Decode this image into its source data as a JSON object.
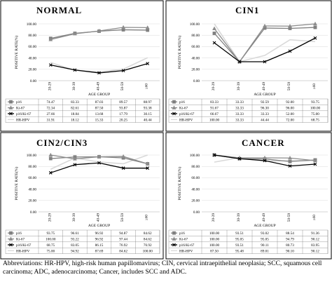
{
  "caption": {
    "line1": "Abbreviations: HR-HPV, high-risk human papillomavirus; CIN, cervical intraepithelial neoplasia; SCC, squamous cell",
    "line2": "carcinoma; ADC, adenocarcinoma; Cancer, includes SCC and ADC."
  },
  "chart_data": [
    {
      "type": "line",
      "title": "NORMAL",
      "xlabel": "AGE GROUP",
      "ylabel": "POSITIVE RATE(%)",
      "ylim": [
        0,
        100
      ],
      "yticks": [
        "0.00",
        "20.00",
        "40.00",
        "60.00",
        "80.00",
        "100.00"
      ],
      "categories": [
        "20-29",
        "30-39",
        "40-49",
        "50-59",
        "≥60"
      ],
      "legend": "table-below",
      "series": [
        {
          "name": "p16",
          "color": "#808080",
          "marker": "square",
          "values": [
            74.47,
            83.33,
            87.03,
            89.57,
            88.97
          ],
          "labels": [
            "74.47",
            "83.33",
            "87.03",
            "89.57",
            "88.97"
          ]
        },
        {
          "name": "Ki-67",
          "color": "#8c8c8c",
          "marker": "triangle",
          "values": [
            72.34,
            82.61,
            87.5,
            93.87,
            93.38
          ],
          "labels": [
            "72.34",
            "82.61",
            "87.50",
            "93.87",
            "93.38"
          ]
        },
        {
          "name": "p16/Ki-67",
          "color": "#000000",
          "marker": "x",
          "values": [
            27.66,
            18.84,
            13.68,
            17.79,
            30.15
          ],
          "labels": [
            "27.66",
            "18.84",
            "13.68",
            "17.79",
            "30.15"
          ]
        },
        {
          "name": "HR-HPV",
          "color": "#d9d9d9",
          "marker": "none",
          "values": [
            31.91,
            18.12,
            15.33,
            20.25,
            40.44
          ],
          "labels": [
            "31.91",
            "18.12",
            "15.33",
            "20.25",
            "40.44"
          ]
        }
      ]
    },
    {
      "type": "line",
      "title": "CIN1",
      "xlabel": "AGE GROUP",
      "ylabel": "POSITIVE RATE(%)",
      "ylim": [
        0,
        100
      ],
      "yticks": [
        "0.00",
        "20.00",
        "40.00",
        "60.00",
        "80.00",
        "100.00"
      ],
      "categories": [
        "20-29",
        "30-39",
        "40-49",
        "50-59",
        "≥60"
      ],
      "legend": "table-below",
      "series": [
        {
          "name": "p16",
          "color": "#808080",
          "marker": "square",
          "values": [
            83.33,
            33.33,
            92.59,
            92.0,
            93.75
          ],
          "labels": [
            "83.33",
            "33.33",
            "92.59",
            "92.00",
            "93.75"
          ]
        },
        {
          "name": "Ki-67",
          "color": "#8c8c8c",
          "marker": "triangle",
          "values": [
            91.67,
            33.33,
            96.3,
            96.0,
            100.0
          ],
          "labels": [
            "91.67",
            "33.33",
            "96.30",
            "96.00",
            "100.00"
          ]
        },
        {
          "name": "p16/Ki-67",
          "color": "#000000",
          "marker": "x",
          "values": [
            66.67,
            33.33,
            33.33,
            52.0,
            75.0
          ],
          "labels": [
            "66.67",
            "33.33",
            "33.33",
            "52.00",
            "75.00"
          ]
        },
        {
          "name": "HR-HPV",
          "color": "#d9d9d9",
          "marker": "none",
          "values": [
            100.0,
            33.33,
            44.44,
            72.0,
            68.75
          ],
          "labels": [
            "100.00",
            "33.33",
            "44.44",
            "72.00",
            "68.75"
          ]
        }
      ]
    },
    {
      "type": "line",
      "title": "CIN2/CIN3",
      "xlabel": "AGE GROUP",
      "ylabel": "POSITIVE RATE(%)",
      "ylim": [
        0,
        100
      ],
      "yticks": [
        "0.00",
        "20.00",
        "40.00",
        "60.00",
        "80.00",
        "100.00"
      ],
      "categories": [
        "20-29",
        "30-39",
        "40-49",
        "50-59",
        "≥60"
      ],
      "legend": "table-below",
      "series": [
        {
          "name": "p16",
          "color": "#808080",
          "marker": "square",
          "values": [
            93.75,
            96.61,
            96.92,
            94.87,
            84.62
          ],
          "labels": [
            "93.75",
            "96.61",
            "96.92",
            "94.87",
            "84.62"
          ]
        },
        {
          "name": "Ki-67",
          "color": "#8c8c8c",
          "marker": "triangle",
          "values": [
            100.0,
            93.22,
            96.92,
            97.44,
            84.62
          ],
          "labels": [
            "100.00",
            "93.22",
            "96.92",
            "97.44",
            "84.62"
          ]
        },
        {
          "name": "p16/Ki-67",
          "color": "#000000",
          "marker": "x",
          "values": [
            68.75,
            83.05,
            86.15,
            76.92,
            76.92
          ],
          "labels": [
            "68.75",
            "83.05",
            "86.15",
            "76.92",
            "76.92"
          ]
        },
        {
          "name": "HR-HPV",
          "color": "#d9d9d9",
          "marker": "none",
          "values": [
            75.0,
            94.92,
            87.69,
            84.62,
            100.0
          ],
          "labels": [
            "75.00",
            "94.92",
            "87.69",
            "84.62",
            "100.00"
          ]
        }
      ]
    },
    {
      "type": "line",
      "title": "CANCER",
      "xlabel": "AGE GROUP",
      "ylabel": "POSITIVE RATE(%)",
      "ylim": [
        0,
        100
      ],
      "yticks": [
        "0.00",
        "20.00",
        "40.00",
        "60.00",
        "80.00",
        "100.00"
      ],
      "categories": [
        "20-29",
        "30-39",
        "40-49",
        "50-59",
        "≥60"
      ],
      "legend": "table-below",
      "series": [
        {
          "name": "p16",
          "color": "#808080",
          "marker": "square",
          "values": [
            100.0,
            93.51,
            93.02,
            88.54,
            91.36
          ],
          "labels": [
            "100.00",
            "93.51",
            "93.02",
            "88.54",
            "91.36"
          ]
        },
        {
          "name": "Ki-67",
          "color": "#8c8c8c",
          "marker": "triangle",
          "values": [
            100.0,
            95.05,
            95.05,
            94.79,
            90.12
          ],
          "labels": [
            "100.00",
            "95.05",
            "95.05",
            "94.79",
            "90.12"
          ]
        },
        {
          "name": "p16/Ki-67",
          "color": "#000000",
          "marker": "x",
          "values": [
            100.0,
            93.51,
            90.11,
            80.73,
            83.95
          ],
          "labels": [
            "100.00",
            "93.51",
            "90.11",
            "80.73",
            "83.95"
          ]
        },
        {
          "name": "HR-HPV",
          "color": "#d9d9d9",
          "marker": "none",
          "values": [
            87.5,
            95.48,
            89.01,
            90.1,
            90.12
          ],
          "labels": [
            "87.50",
            "95.48",
            "89.01",
            "90.10",
            "90.12"
          ]
        }
      ]
    }
  ]
}
